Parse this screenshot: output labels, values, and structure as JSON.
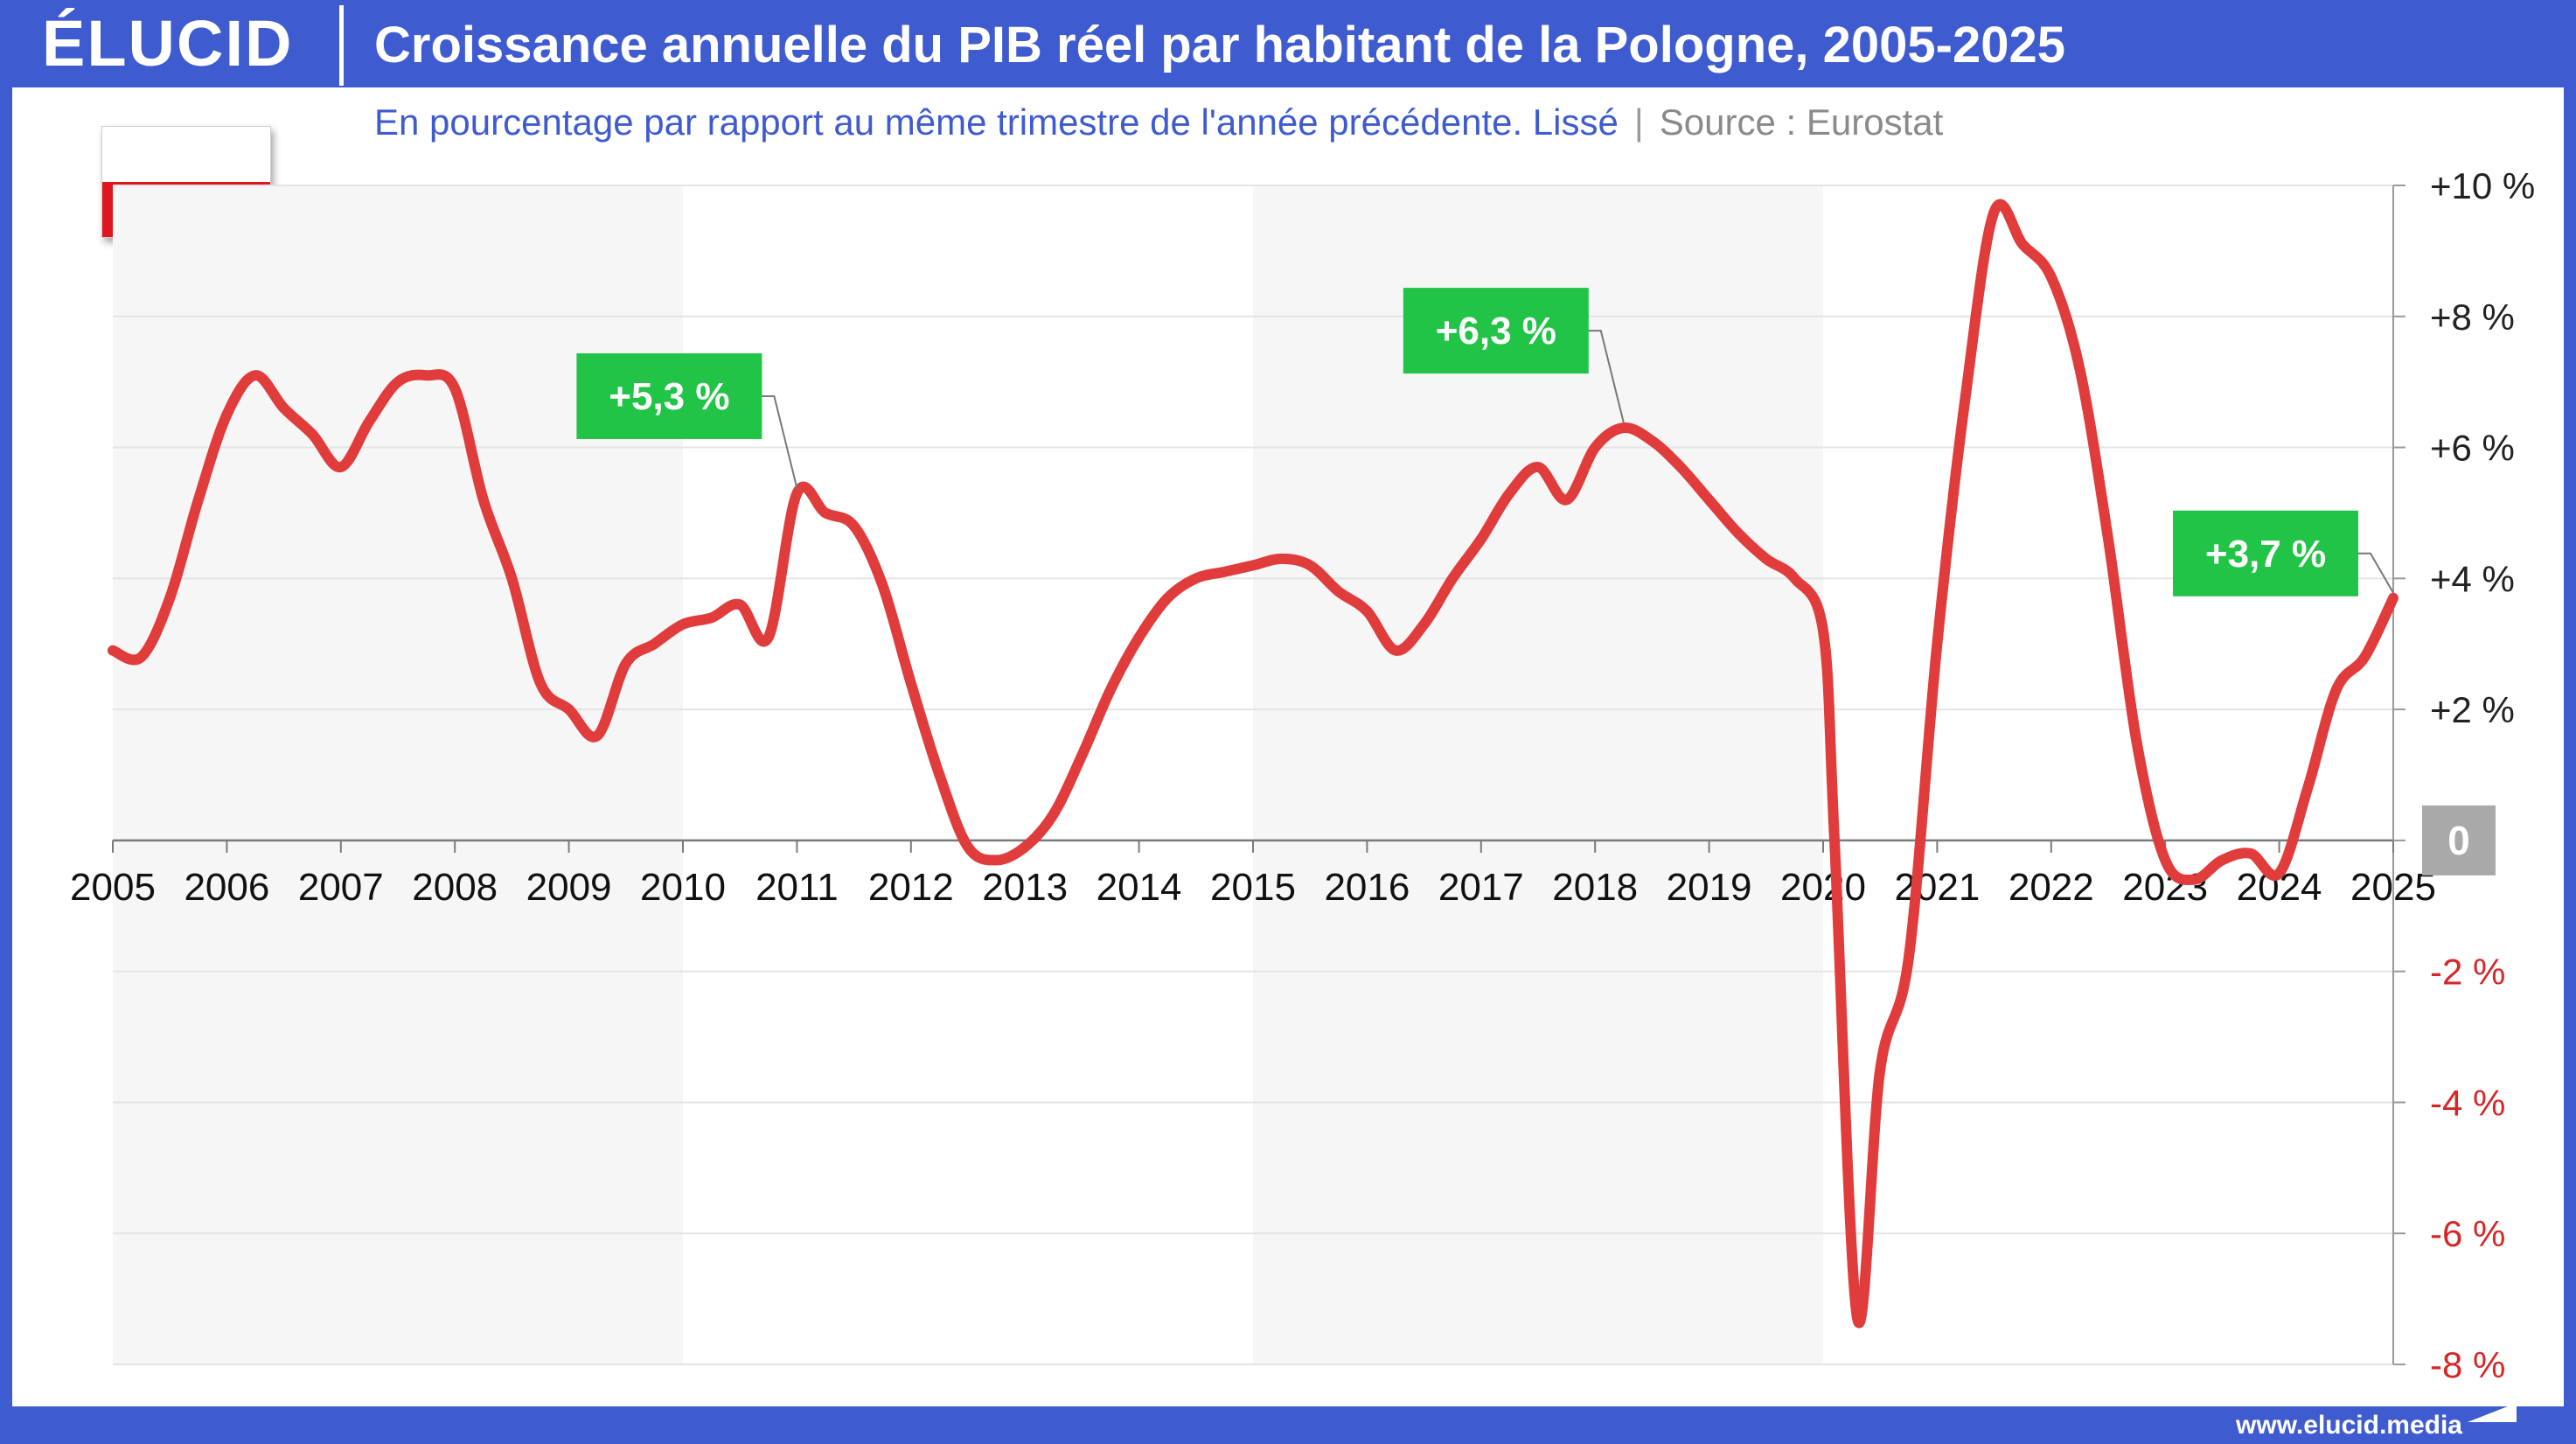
{
  "header": {
    "logo": "ÉLUCID",
    "title": "Croissance annuelle du PIB réel par habitant de la Pologne, 2005-2025"
  },
  "subtitle": {
    "text": "En pourcentage par rapport au même trimestre de l'année précédente. Lissé",
    "separator": "|",
    "source": "Source : Eurostat"
  },
  "flag": {
    "country": "Pologne",
    "top_color": "#ffffff",
    "bottom_color": "#e0161e"
  },
  "footer": {
    "url": "www.elucid.media"
  },
  "colors": {
    "line": "#e03c3c",
    "brand": "#3f5bd0",
    "annotation": "#22c447",
    "zero_badge": "#a9a9a9",
    "negative_ticks": "#d62727"
  },
  "chart_data": {
    "type": "line",
    "title": "Croissance annuelle du PIB réel par habitant de la Pologne, 2005-2025",
    "xlabel": "",
    "ylabel": "",
    "xlim": [
      2005,
      2025
    ],
    "ylim": [
      -8,
      10
    ],
    "grid": true,
    "shaded_bands": [
      [
        2005,
        2010
      ],
      [
        2015,
        2020
      ]
    ],
    "x_ticks": [
      "2005",
      "2006",
      "2007",
      "2008",
      "2009",
      "2010",
      "2011",
      "2012",
      "2013",
      "2014",
      "2015",
      "2016",
      "2017",
      "2018",
      "2019",
      "2020",
      "2021",
      "2022",
      "2023",
      "2024",
      "2025"
    ],
    "y_ticks": [
      "+10 %",
      "+8 %",
      "+6 %",
      "+4 %",
      "+2 %",
      "0",
      "-2 %",
      "-4 %",
      "-6 %",
      "-8 %"
    ],
    "annotations": [
      {
        "label": "+5,3 %",
        "x": 2011.0,
        "y": 5.3
      },
      {
        "label": "+6,3 %",
        "x": 2018.25,
        "y": 6.3
      },
      {
        "label": "+3,7 %",
        "x": 2025.0,
        "y": 3.7
      }
    ],
    "series": [
      {
        "values": [
          [
            2005.0,
            2.9
          ],
          [
            2005.25,
            2.8
          ],
          [
            2005.5,
            3.7
          ],
          [
            2005.75,
            5.2
          ],
          [
            2006.0,
            6.5
          ],
          [
            2006.25,
            7.1
          ],
          [
            2006.5,
            6.6
          ],
          [
            2006.75,
            6.2
          ],
          [
            2007.0,
            5.7
          ],
          [
            2007.25,
            6.4
          ],
          [
            2007.5,
            7.0
          ],
          [
            2007.75,
            7.1
          ],
          [
            2008.0,
            6.9
          ],
          [
            2008.25,
            5.2
          ],
          [
            2008.5,
            4.0
          ],
          [
            2008.75,
            2.4
          ],
          [
            2009.0,
            2.0
          ],
          [
            2009.25,
            1.6
          ],
          [
            2009.5,
            2.7
          ],
          [
            2009.75,
            3.0
          ],
          [
            2010.0,
            3.3
          ],
          [
            2010.25,
            3.4
          ],
          [
            2010.5,
            3.6
          ],
          [
            2010.75,
            3.1
          ],
          [
            2011.0,
            5.3
          ],
          [
            2011.25,
            5.0
          ],
          [
            2011.5,
            4.8
          ],
          [
            2011.75,
            3.9
          ],
          [
            2012.0,
            2.4
          ],
          [
            2012.25,
            1.0
          ],
          [
            2012.5,
            -0.1
          ],
          [
            2012.75,
            -0.3
          ],
          [
            2013.0,
            -0.1
          ],
          [
            2013.25,
            0.4
          ],
          [
            2013.5,
            1.3
          ],
          [
            2013.75,
            2.3
          ],
          [
            2014.0,
            3.1
          ],
          [
            2014.25,
            3.7
          ],
          [
            2014.5,
            4.0
          ],
          [
            2014.75,
            4.1
          ],
          [
            2015.0,
            4.2
          ],
          [
            2015.25,
            4.3
          ],
          [
            2015.5,
            4.2
          ],
          [
            2015.75,
            3.8
          ],
          [
            2016.0,
            3.5
          ],
          [
            2016.25,
            2.9
          ],
          [
            2016.5,
            3.3
          ],
          [
            2016.75,
            4.0
          ],
          [
            2017.0,
            4.6
          ],
          [
            2017.25,
            5.3
          ],
          [
            2017.5,
            5.7
          ],
          [
            2017.75,
            5.2
          ],
          [
            2018.0,
            6.0
          ],
          [
            2018.25,
            6.3
          ],
          [
            2018.5,
            6.1
          ],
          [
            2018.75,
            5.7
          ],
          [
            2019.0,
            5.2
          ],
          [
            2019.25,
            4.7
          ],
          [
            2019.5,
            4.3
          ],
          [
            2019.75,
            4.0
          ],
          [
            2020.0,
            3.2
          ],
          [
            2020.1,
            0.0
          ],
          [
            2020.3,
            -7.3
          ],
          [
            2020.5,
            -3.5
          ],
          [
            2020.75,
            -1.8
          ],
          [
            2021.0,
            3.0
          ],
          [
            2021.25,
            6.8
          ],
          [
            2021.5,
            9.6
          ],
          [
            2021.75,
            9.1
          ],
          [
            2022.0,
            8.6
          ],
          [
            2022.25,
            7.2
          ],
          [
            2022.5,
            4.6
          ],
          [
            2022.75,
            1.5
          ],
          [
            2023.0,
            -0.3
          ],
          [
            2023.25,
            -0.6
          ],
          [
            2023.5,
            -0.3
          ],
          [
            2023.75,
            -0.2
          ],
          [
            2024.0,
            -0.5
          ],
          [
            2024.25,
            0.8
          ],
          [
            2024.5,
            2.3
          ],
          [
            2024.75,
            2.8
          ],
          [
            2025.0,
            3.7
          ]
        ]
      }
    ]
  }
}
